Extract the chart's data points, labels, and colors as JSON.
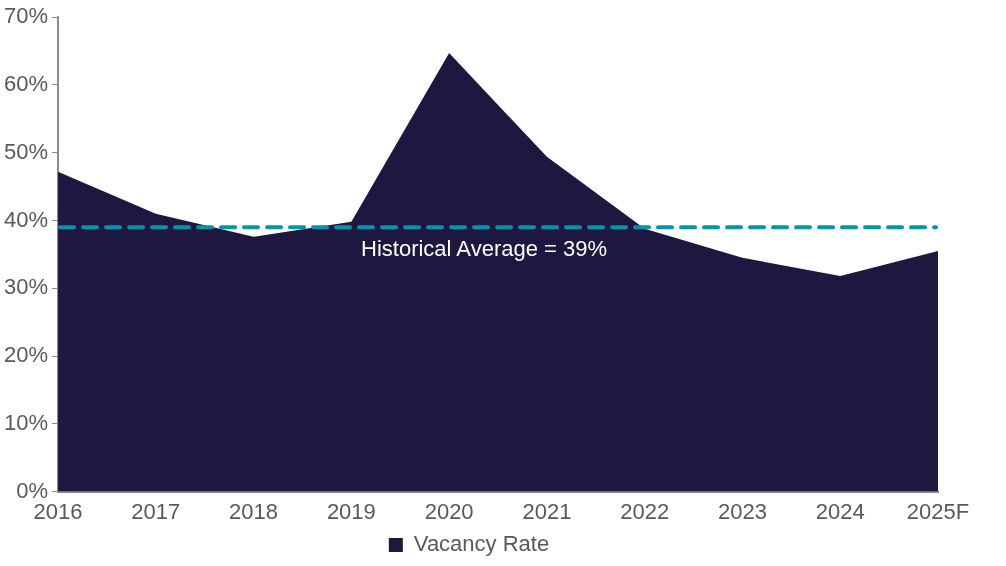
{
  "chart_data": {
    "type": "area",
    "categories": [
      "2016",
      "2017",
      "2018",
      "2019",
      "2020",
      "2021",
      "2022",
      "2023",
      "2024",
      "2025F"
    ],
    "series": [
      {
        "name": "Vacancy Rate",
        "color": "#1e1840",
        "values": [
          47.2,
          41,
          37.6,
          39.8,
          64.7,
          49.4,
          38.8,
          34.5,
          31.8,
          35.5
        ]
      }
    ],
    "ylim": [
      0,
      70
    ],
    "yticks": [
      {
        "value": 0,
        "label": "0%"
      },
      {
        "value": 10,
        "label": "10%"
      },
      {
        "value": 20,
        "label": "20%"
      },
      {
        "value": 30,
        "label": "30%"
      },
      {
        "value": 40,
        "label": "40%"
      },
      {
        "value": 50,
        "label": "50%"
      },
      {
        "value": 60,
        "label": "60%"
      },
      {
        "value": 70,
        "label": "70%"
      }
    ],
    "ref_lines": [
      {
        "axis": "y",
        "value": 39,
        "label": "Historical Average = 39%",
        "color": "#0096aa",
        "line_style": "dashed"
      }
    ],
    "grid": false,
    "legend": "bottom"
  }
}
